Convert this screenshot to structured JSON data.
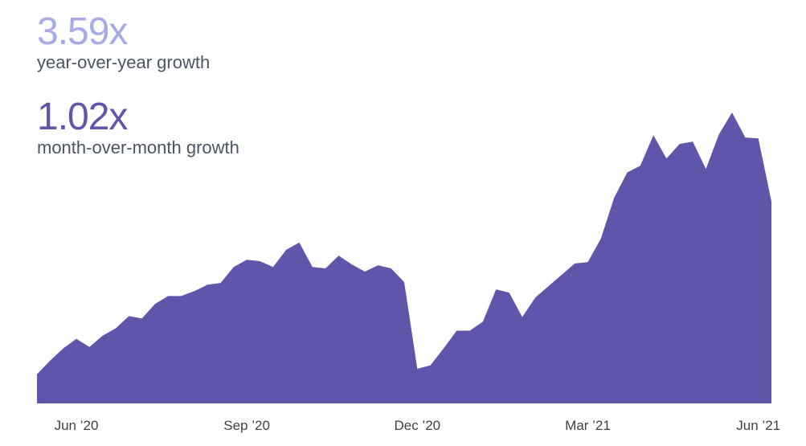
{
  "stats": {
    "yoy": {
      "value": "3.59x",
      "label": "year-over-year growth",
      "color": "#a7a9e8"
    },
    "mom": {
      "value": "1.02x",
      "label": "month-over-month growth",
      "color": "#5f56ac"
    }
  },
  "chart_data": {
    "type": "area",
    "title": "",
    "xlabel": "",
    "ylabel": "",
    "color": "#5f56ac",
    "ylim": [
      0,
      100
    ],
    "grid": false,
    "legend": "none",
    "x_ticks": [
      {
        "label": "Jun ’20",
        "x": 3.0
      },
      {
        "label": "Sep ’20",
        "x": 16.0
      },
      {
        "label": "Dec ’20",
        "x": 29.0
      },
      {
        "label": "Mar ’21",
        "x": 42.0
      },
      {
        "label": "Jun ’21",
        "x": 55.0
      }
    ],
    "points": [
      [
        0,
        10.0
      ],
      [
        1,
        14.7
      ],
      [
        2,
        18.9
      ],
      [
        3,
        22.2
      ],
      [
        4,
        19.4
      ],
      [
        5,
        23.3
      ],
      [
        6,
        25.8
      ],
      [
        7,
        30.0
      ],
      [
        8,
        29.2
      ],
      [
        9,
        34.2
      ],
      [
        10,
        36.9
      ],
      [
        11,
        36.9
      ],
      [
        12,
        38.6
      ],
      [
        13,
        40.8
      ],
      [
        14,
        41.4
      ],
      [
        15,
        46.9
      ],
      [
        16,
        49.4
      ],
      [
        17,
        48.9
      ],
      [
        18,
        46.9
      ],
      [
        19,
        52.8
      ],
      [
        20,
        55.3
      ],
      [
        21,
        46.9
      ],
      [
        22,
        46.4
      ],
      [
        23,
        50.8
      ],
      [
        24,
        47.8
      ],
      [
        25,
        45.3
      ],
      [
        26,
        47.5
      ],
      [
        27,
        46.4
      ],
      [
        28,
        41.7
      ],
      [
        29,
        11.9
      ],
      [
        30,
        13.1
      ],
      [
        31,
        18.9
      ],
      [
        32,
        25.0
      ],
      [
        33,
        25.0
      ],
      [
        34,
        28.1
      ],
      [
        35,
        39.2
      ],
      [
        36,
        38.1
      ],
      [
        37,
        29.7
      ],
      [
        38,
        36.4
      ],
      [
        39,
        40.3
      ],
      [
        40,
        44.2
      ],
      [
        41,
        48.1
      ],
      [
        42,
        48.6
      ],
      [
        43,
        56.7
      ],
      [
        44,
        70.6
      ],
      [
        45,
        79.4
      ],
      [
        46,
        81.7
      ],
      [
        47,
        92.2
      ],
      [
        48,
        84.2
      ],
      [
        49,
        89.2
      ],
      [
        50,
        90.0
      ],
      [
        51,
        80.6
      ],
      [
        52,
        92.5
      ],
      [
        53,
        100.0
      ],
      [
        54,
        91.4
      ],
      [
        55,
        91.1
      ],
      [
        56,
        69.4
      ]
    ]
  }
}
